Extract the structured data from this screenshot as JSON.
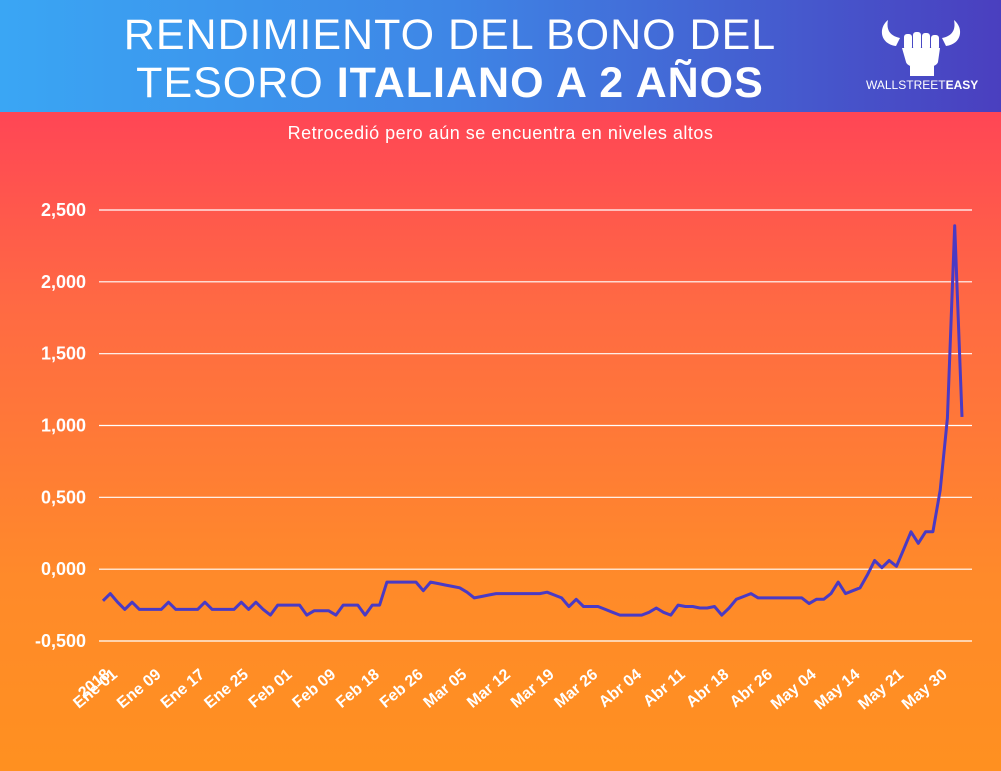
{
  "header": {
    "title_line1": "RENDIMIENTO DEL BONO DEL",
    "title_line2_normal": "TESORO ",
    "title_line2_bold": "ITALIANO A 2 AÑOS"
  },
  "logo": {
    "text_normal": "WALLSTREET",
    "text_bold": "EASY",
    "icon": "bull-fist-icon"
  },
  "subtitle": "Retrocedió pero aún se encuentra en niveles altos",
  "colors": {
    "line": "#4a3ac4",
    "grid": "#ffffff",
    "header_left": "#3aa6f4",
    "header_right": "#4a3fbf",
    "bg_top": "#ff4257",
    "bg_bottom": "#ff9020"
  },
  "chart_data": {
    "type": "line",
    "title": "RENDIMIENTO DEL BONO DEL TESORO ITALIANO A 2 AÑOS",
    "subtitle": "Retrocedió pero aún se encuentra en niveles altos",
    "xlabel": "",
    "ylabel": "",
    "ylim": [
      -0.5,
      2.5
    ],
    "yticks": [
      -0.5,
      0.0,
      0.5,
      1.0,
      1.5,
      2.0,
      2.5
    ],
    "ytick_labels": [
      "-0,500",
      "0,000",
      "0,500",
      "1,000",
      "1,500",
      "2,000",
      "2,500"
    ],
    "grid": true,
    "legend": "none",
    "x_tick_labels": [
      "2018",
      "Ene 01",
      "Ene 09",
      "Ene 17",
      "Ene 25",
      "Feb 01",
      "Feb 09",
      "Feb 18",
      "Feb 26",
      "Mar 05",
      "Mar 12",
      "Mar 19",
      "Mar 26",
      "Abr 04",
      "Abr 11",
      "Abr 18",
      "Abr 26",
      "May 04",
      "May 14",
      "May 21",
      "May 30"
    ],
    "x_tick_index": [
      0,
      1,
      7,
      13,
      19,
      25,
      31,
      37,
      43,
      49,
      55,
      61,
      67,
      73,
      79,
      85,
      91,
      97,
      103,
      109,
      115
    ],
    "series": [
      {
        "values": [
          -0.22,
          -0.17,
          -0.23,
          -0.28,
          -0.23,
          -0.28,
          -0.28,
          -0.28,
          -0.28,
          -0.23,
          -0.28,
          -0.28,
          -0.28,
          -0.28,
          -0.23,
          -0.28,
          -0.28,
          -0.28,
          -0.28,
          -0.23,
          -0.28,
          -0.23,
          -0.28,
          -0.32,
          -0.25,
          -0.25,
          -0.25,
          -0.25,
          -0.32,
          -0.29,
          -0.29,
          -0.29,
          -0.32,
          -0.25,
          -0.25,
          -0.25,
          -0.32,
          -0.25,
          -0.25,
          -0.09,
          -0.09,
          -0.09,
          -0.09,
          -0.09,
          -0.15,
          -0.09,
          -0.1,
          -0.11,
          -0.12,
          -0.13,
          -0.16,
          -0.2,
          -0.19,
          -0.18,
          -0.17,
          -0.17,
          -0.17,
          -0.17,
          -0.17,
          -0.17,
          -0.17,
          -0.16,
          -0.18,
          -0.2,
          -0.26,
          -0.21,
          -0.26,
          -0.26,
          -0.26,
          -0.28,
          -0.3,
          -0.32,
          -0.32,
          -0.32,
          -0.32,
          -0.3,
          -0.27,
          -0.3,
          -0.32,
          -0.25,
          -0.26,
          -0.26,
          -0.27,
          -0.27,
          -0.26,
          -0.32,
          -0.27,
          -0.21,
          -0.19,
          -0.17,
          -0.2,
          -0.2,
          -0.2,
          -0.2,
          -0.2,
          -0.2,
          -0.2,
          -0.24,
          -0.21,
          -0.21,
          -0.17,
          -0.09,
          -0.17,
          -0.15,
          -0.13,
          -0.04,
          0.06,
          0.01,
          0.06,
          0.02,
          0.14,
          0.26,
          0.18,
          0.26,
          0.26,
          0.55,
          1.05,
          2.39,
          1.06
        ]
      }
    ]
  }
}
